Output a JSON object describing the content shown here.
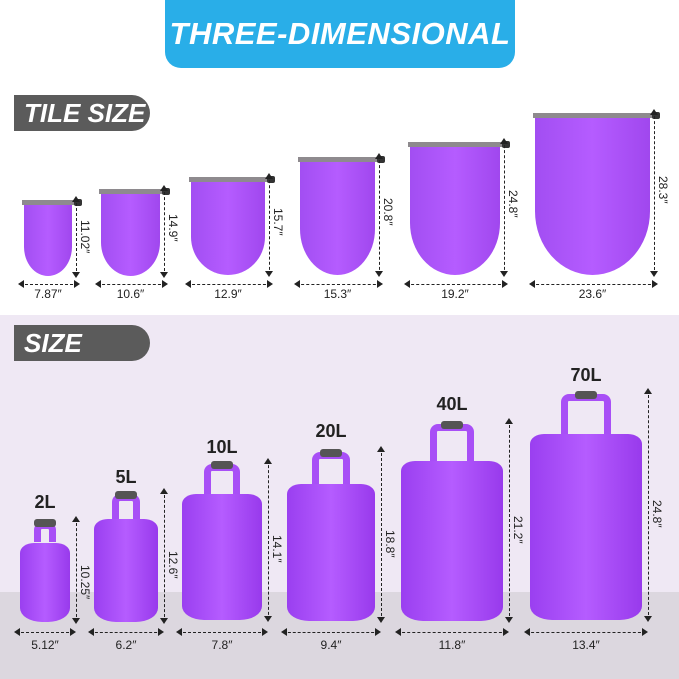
{
  "banner": {
    "title": "THREE-DIMENSIONAL",
    "color": "#29aee8"
  },
  "tile_size": {
    "label": "TILE SIZE",
    "bags": [
      {
        "width": "7.87″",
        "height": "11.02″"
      },
      {
        "width": "10.6″",
        "height": "14.9″"
      },
      {
        "width": "12.9″",
        "height": "15.7″"
      },
      {
        "width": "15.3″",
        "height": "20.8″"
      },
      {
        "width": "19.2″",
        "height": "24.8″"
      },
      {
        "width": "23.6″",
        "height": "28.3″"
      }
    ]
  },
  "size": {
    "label": "SIZE",
    "bags": [
      {
        "capacity": "2L",
        "width": "5.12″",
        "height": "10.25″"
      },
      {
        "capacity": "5L",
        "width": "6.2″",
        "height": "12.6″"
      },
      {
        "capacity": "10L",
        "width": "7.8″",
        "height": "14.1″"
      },
      {
        "capacity": "20L",
        "width": "9.4″",
        "height": "18.8″"
      },
      {
        "capacity": "40L",
        "width": "11.8″",
        "height": "21.2″"
      },
      {
        "capacity": "70L",
        "width": "13.4″",
        "height": "24.8″"
      }
    ]
  },
  "colors": {
    "bag": "#b055fb",
    "tab": "#5b5b5b"
  }
}
